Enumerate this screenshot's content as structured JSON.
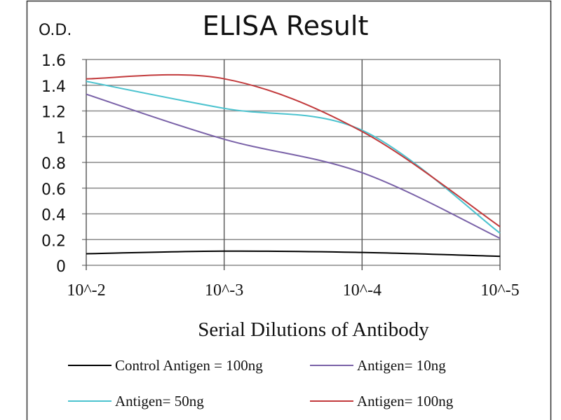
{
  "chart_data": {
    "type": "line",
    "title": "ELISA Result",
    "ylabel": "O.D.",
    "xlabel": "Serial Dilutions  of Antibody",
    "categories": [
      "10^-2",
      "10^-3",
      "10^-4",
      "10^-5"
    ],
    "ylim": [
      0,
      1.6
    ],
    "yticks": [
      "0",
      "0.2",
      "0.4",
      "0.6",
      "0.8",
      "1",
      "1.2",
      "1.4",
      "1.6"
    ],
    "grid": true,
    "smooth": true,
    "legend_position": "bottom",
    "series": [
      {
        "name": "Control Antigen = 100ng",
        "color": "#000000",
        "values": [
          0.09,
          0.11,
          0.1,
          0.07
        ]
      },
      {
        "name": "Antigen= 10ng",
        "color": "#7a62a8",
        "values": [
          1.33,
          0.98,
          0.72,
          0.21
        ]
      },
      {
        "name": "Antigen= 50ng",
        "color": "#4cc3cf",
        "values": [
          1.43,
          1.22,
          1.05,
          0.25
        ]
      },
      {
        "name": "Antigen= 100ng",
        "color": "#c23a3c",
        "values": [
          1.45,
          1.45,
          1.04,
          0.3
        ]
      }
    ]
  }
}
